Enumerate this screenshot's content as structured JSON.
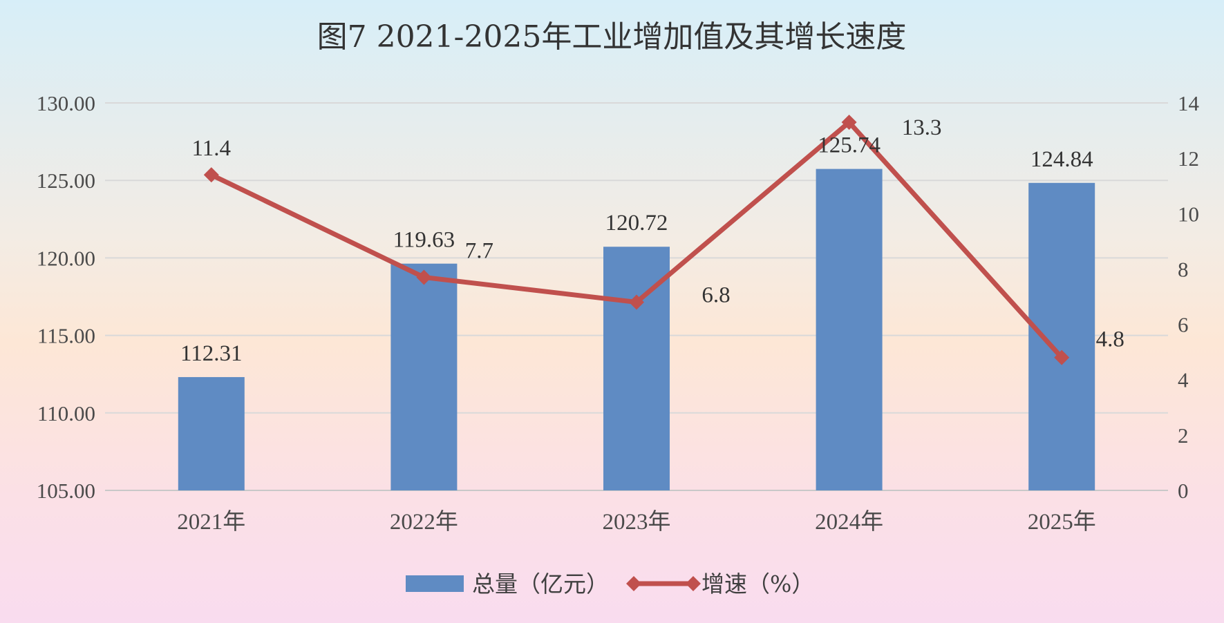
{
  "chart_data": {
    "type": "bar",
    "title": "图7     2021-2025年工业增加值及其增长速度",
    "categories": [
      "2021年",
      "2022年",
      "2023年",
      "2024年",
      "2025年"
    ],
    "series": [
      {
        "name": "总量（亿元）",
        "type": "bar",
        "axis": "left",
        "color": "#5f8bc3",
        "values": [
          112.31,
          119.63,
          120.72,
          125.74,
          124.84
        ],
        "labels": [
          "112.31",
          "119.63",
          "120.72",
          "125.74",
          "124.84"
        ]
      },
      {
        "name": "增速（%）",
        "type": "line",
        "axis": "right",
        "color": "#c0504d",
        "marker": "diamond",
        "values": [
          11.4,
          7.7,
          6.8,
          13.3,
          4.8
        ],
        "labels": [
          "11.4",
          "7.7",
          "6.8",
          "13.3",
          "4.8"
        ]
      }
    ],
    "y_left": {
      "min": 105,
      "max": 130,
      "step": 5,
      "ticks": [
        "105.00",
        "110.00",
        "115.00",
        "120.00",
        "125.00",
        "130.00"
      ]
    },
    "y_right": {
      "min": 0,
      "max": 14,
      "step": 2,
      "ticks": [
        "0",
        "2",
        "4",
        "6",
        "8",
        "10",
        "12",
        "14"
      ]
    },
    "grid": true,
    "legend_position": "bottom"
  }
}
